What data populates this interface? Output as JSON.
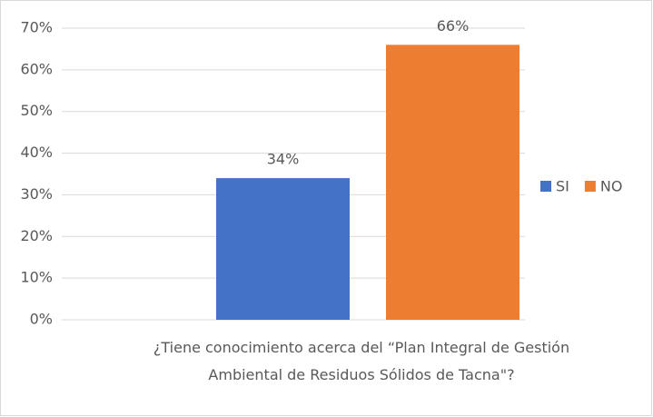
{
  "chart_data": {
    "type": "bar",
    "categories": [
      "¿Tiene conocimiento acerca del “Plan Integral de Gestión Ambiental de Residuos Sólidos de Tacna\"?"
    ],
    "series": [
      {
        "name": "SI",
        "color": "#4472c4",
        "values": [
          34
        ],
        "value_labels": [
          "34%"
        ]
      },
      {
        "name": "NO",
        "color": "#ed7d31",
        "values": [
          66
        ],
        "value_labels": [
          "66%"
        ]
      }
    ],
    "ylim": [
      0,
      70
    ],
    "yticks": [
      {
        "value": 0,
        "label": "0%"
      },
      {
        "value": 10,
        "label": "10%"
      },
      {
        "value": 20,
        "label": "20%"
      },
      {
        "value": 30,
        "label": "30%"
      },
      {
        "value": 40,
        "label": "40%"
      },
      {
        "value": 50,
        "label": "50%"
      },
      {
        "value": 60,
        "label": "60%"
      },
      {
        "value": 70,
        "label": "70%"
      }
    ],
    "grid": true,
    "legend": "right"
  }
}
